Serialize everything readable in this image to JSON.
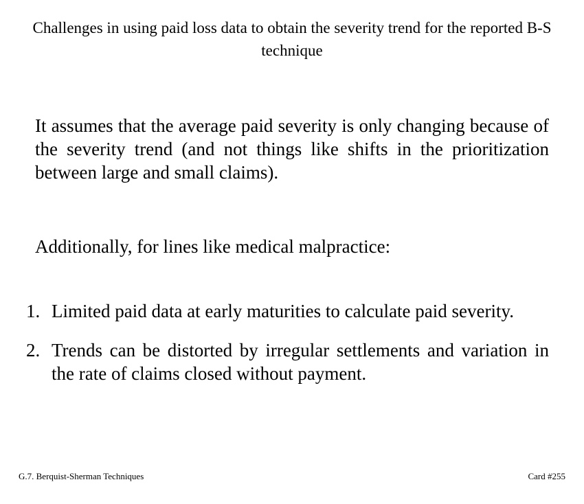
{
  "card": {
    "title": "Challenges in using paid loss data to obtain the severity trend for the reported B-S technique",
    "paragraph1": "It assumes that the average paid severity is only changing because of the severity trend (and not things like shifts in the prioritization between large and small claims).",
    "paragraph2": "Additionally, for lines like medical malpractice:",
    "list": [
      {
        "number": "1.",
        "text": "Limited paid data at early maturities to calculate paid severity."
      },
      {
        "number": "2.",
        "text": "Trends can be distorted by irregular settlements and variation in the rate of claims closed without payment."
      }
    ]
  },
  "footer": {
    "topic": "G.7. Berquist-Sherman Techniques",
    "card_number": "Card #255"
  }
}
